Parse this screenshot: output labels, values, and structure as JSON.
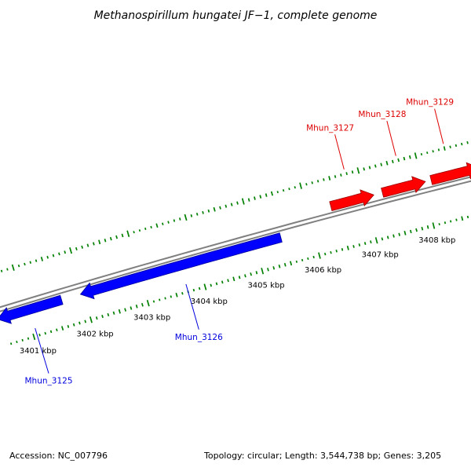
{
  "title": "Methanospirillum hungatei JF−1, complete genome",
  "footer": {
    "accession": "Accession: NC_007796",
    "stats": "Topology: circular; Length: 3,544,738 bp; Genes: 3,205"
  },
  "genome_track": {
    "unit": "kbp",
    "visible_range_kbp": [
      3400.6,
      3408.8
    ],
    "scale_ticks_kbp": [
      3401,
      3402,
      3403,
      3404,
      3405,
      3406,
      3407,
      3408
    ],
    "scale_labels": [
      "3401 kbp",
      "3402 kbp",
      "3403 kbp",
      "3404 kbp",
      "3405 kbp",
      "3406 kbp",
      "3407 kbp",
      "3408 kbp"
    ],
    "genes": [
      {
        "label": "Mhun_3125",
        "strand": "reverse",
        "start_kbp": 3400.5,
        "end_kbp": 3401.62
      },
      {
        "label": "Mhun_3126",
        "strand": "reverse",
        "start_kbp": 3401.95,
        "end_kbp": 3405.45
      },
      {
        "label": "Mhun_3127",
        "strand": "forward",
        "start_kbp": 3406.4,
        "end_kbp": 3407.15
      },
      {
        "label": "Mhun_3128",
        "strand": "forward",
        "start_kbp": 3407.3,
        "end_kbp": 3408.05
      },
      {
        "label": "Mhun_3129",
        "strand": "forward",
        "start_kbp": 3408.15,
        "end_kbp": 3409.0
      }
    ]
  },
  "colors": {
    "forward_gene": "#ff0000",
    "reverse_gene": "#0000ff",
    "forward_gene_edge": "#990000",
    "reverse_gene_edge": "#000099",
    "forward_label": "#dd0000",
    "reverse_label": "#0000dd",
    "backbone": "#808080",
    "ruler_ticks": "#008000",
    "scale_text": "#000000"
  }
}
